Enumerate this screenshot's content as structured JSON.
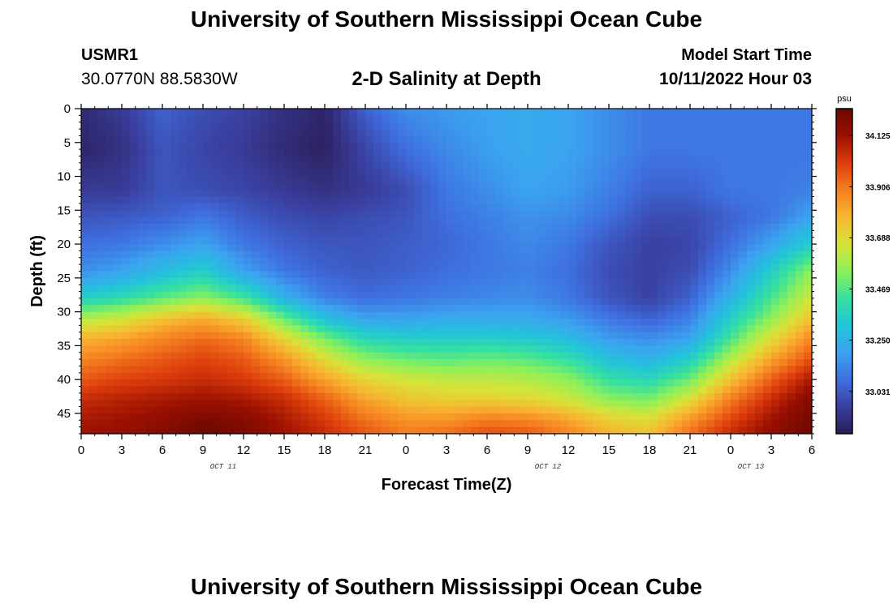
{
  "header": {
    "title": "University of Southern Mississippi Ocean Cube",
    "station_id": "USMR1",
    "station_coords": "30.0770N  88.5830W",
    "plot_title": "2-D Salinity at Depth",
    "model_start_label": "Model Start Time",
    "model_start_value": "10/11/2022 Hour 03"
  },
  "footer": {
    "title": "University of Southern Mississippi Ocean Cube"
  },
  "chart_data": {
    "type": "heatmap",
    "xlabel": "Forecast Time(Z)",
    "ylabel": "Depth (ft)",
    "x_ticks": [
      "0",
      "3",
      "6",
      "9",
      "12",
      "15",
      "18",
      "21",
      "0",
      "3",
      "6",
      "9",
      "12",
      "15",
      "18",
      "21",
      "0",
      "3",
      "6"
    ],
    "day_labels": [
      {
        "label": "OCT 11",
        "at_tick": 3.5
      },
      {
        "label": "OCT 12",
        "at_tick": 11.5
      },
      {
        "label": "OCT 13",
        "at_tick": 16.5
      }
    ],
    "y_ticks": [
      0,
      5,
      10,
      15,
      20,
      25,
      30,
      35,
      40,
      45
    ],
    "ylim": [
      0,
      48
    ],
    "y_reversed": true,
    "colorbar": {
      "unit": "psu",
      "ticks": [
        34.125,
        33.906,
        33.688,
        33.469,
        33.25,
        33.031
      ],
      "range": [
        32.85,
        34.24
      ],
      "colors": [
        "#2a1c55",
        "#3a3f9f",
        "#3f6fe0",
        "#3ba3f0",
        "#22c5d8",
        "#36e0a0",
        "#8df05a",
        "#d8e338",
        "#f7b731",
        "#f57f20",
        "#dd3d0c",
        "#9a1000",
        "#6a0800"
      ]
    },
    "x_hours": [
      0,
      3,
      6,
      9,
      12,
      15,
      18,
      21,
      24,
      27,
      30,
      33,
      36,
      39,
      42,
      45,
      48,
      51,
      54
    ],
    "depths": [
      0,
      6,
      12,
      16,
      20,
      24,
      28,
      31,
      34,
      37,
      40,
      43,
      46,
      48
    ],
    "values": [
      [
        32.9,
        32.95,
        33.05,
        33.0,
        32.97,
        32.92,
        32.88,
        33.05,
        33.15,
        33.18,
        33.2,
        33.22,
        33.2,
        33.15,
        33.1,
        33.1,
        33.1,
        33.1,
        33.1
      ],
      [
        32.88,
        32.92,
        33.02,
        32.98,
        32.95,
        32.9,
        32.87,
        32.98,
        33.08,
        33.14,
        33.19,
        33.22,
        33.2,
        33.15,
        33.1,
        33.1,
        33.1,
        33.1,
        33.1
      ],
      [
        32.95,
        32.95,
        33.02,
        33.0,
        32.98,
        32.95,
        32.92,
        32.95,
        33.0,
        33.1,
        33.15,
        33.2,
        33.18,
        33.12,
        33.05,
        33.05,
        33.1,
        33.1,
        33.12
      ],
      [
        33.02,
        33.03,
        33.05,
        33.1,
        33.04,
        33.0,
        32.98,
        33.0,
        33.02,
        33.08,
        33.12,
        33.16,
        33.14,
        33.08,
        33.0,
        33.0,
        33.05,
        33.1,
        33.2
      ],
      [
        33.08,
        33.1,
        33.15,
        33.2,
        33.1,
        33.05,
        33.02,
        33.02,
        33.04,
        33.06,
        33.1,
        33.14,
        33.1,
        33.02,
        32.97,
        32.98,
        33.08,
        33.2,
        33.35
      ],
      [
        33.15,
        33.2,
        33.28,
        33.35,
        33.2,
        33.1,
        33.05,
        33.03,
        33.05,
        33.08,
        33.1,
        33.12,
        33.08,
        33.0,
        32.97,
        33.0,
        33.15,
        33.35,
        33.55
      ],
      [
        33.35,
        33.4,
        33.48,
        33.55,
        33.45,
        33.25,
        33.12,
        33.08,
        33.1,
        33.12,
        33.14,
        33.15,
        33.1,
        33.02,
        32.97,
        33.05,
        33.25,
        33.45,
        33.65
      ],
      [
        33.6,
        33.65,
        33.75,
        33.8,
        33.72,
        33.5,
        33.3,
        33.2,
        33.2,
        33.22,
        33.22,
        33.22,
        33.18,
        33.1,
        33.05,
        33.12,
        33.35,
        33.55,
        33.75
      ],
      [
        33.78,
        33.82,
        33.88,
        33.93,
        33.88,
        33.7,
        33.52,
        33.38,
        33.35,
        33.35,
        33.35,
        33.33,
        33.28,
        33.18,
        33.15,
        33.2,
        33.45,
        33.68,
        33.88
      ],
      [
        33.88,
        33.92,
        33.96,
        34.0,
        33.96,
        33.85,
        33.68,
        33.55,
        33.5,
        33.48,
        33.5,
        33.48,
        33.42,
        33.3,
        33.25,
        33.35,
        33.6,
        33.82,
        33.98
      ],
      [
        33.96,
        34.0,
        34.02,
        34.05,
        34.02,
        33.95,
        33.82,
        33.7,
        33.65,
        33.62,
        33.62,
        33.6,
        33.55,
        33.42,
        33.38,
        33.5,
        33.75,
        33.95,
        34.1
      ],
      [
        34.05,
        34.08,
        34.1,
        34.12,
        34.1,
        34.05,
        33.95,
        33.82,
        33.75,
        33.72,
        33.72,
        33.7,
        33.65,
        33.55,
        33.52,
        33.68,
        33.9,
        34.05,
        34.18
      ],
      [
        34.1,
        34.12,
        34.15,
        34.2,
        34.18,
        34.1,
        34.02,
        33.92,
        33.85,
        33.85,
        33.9,
        33.88,
        33.82,
        33.72,
        33.68,
        33.85,
        34.0,
        34.12,
        34.22
      ],
      [
        34.12,
        34.14,
        34.18,
        34.24,
        34.2,
        34.12,
        34.05,
        33.96,
        33.9,
        33.92,
        33.98,
        33.96,
        33.88,
        33.78,
        33.75,
        33.92,
        34.05,
        34.15,
        34.24
      ]
    ]
  }
}
